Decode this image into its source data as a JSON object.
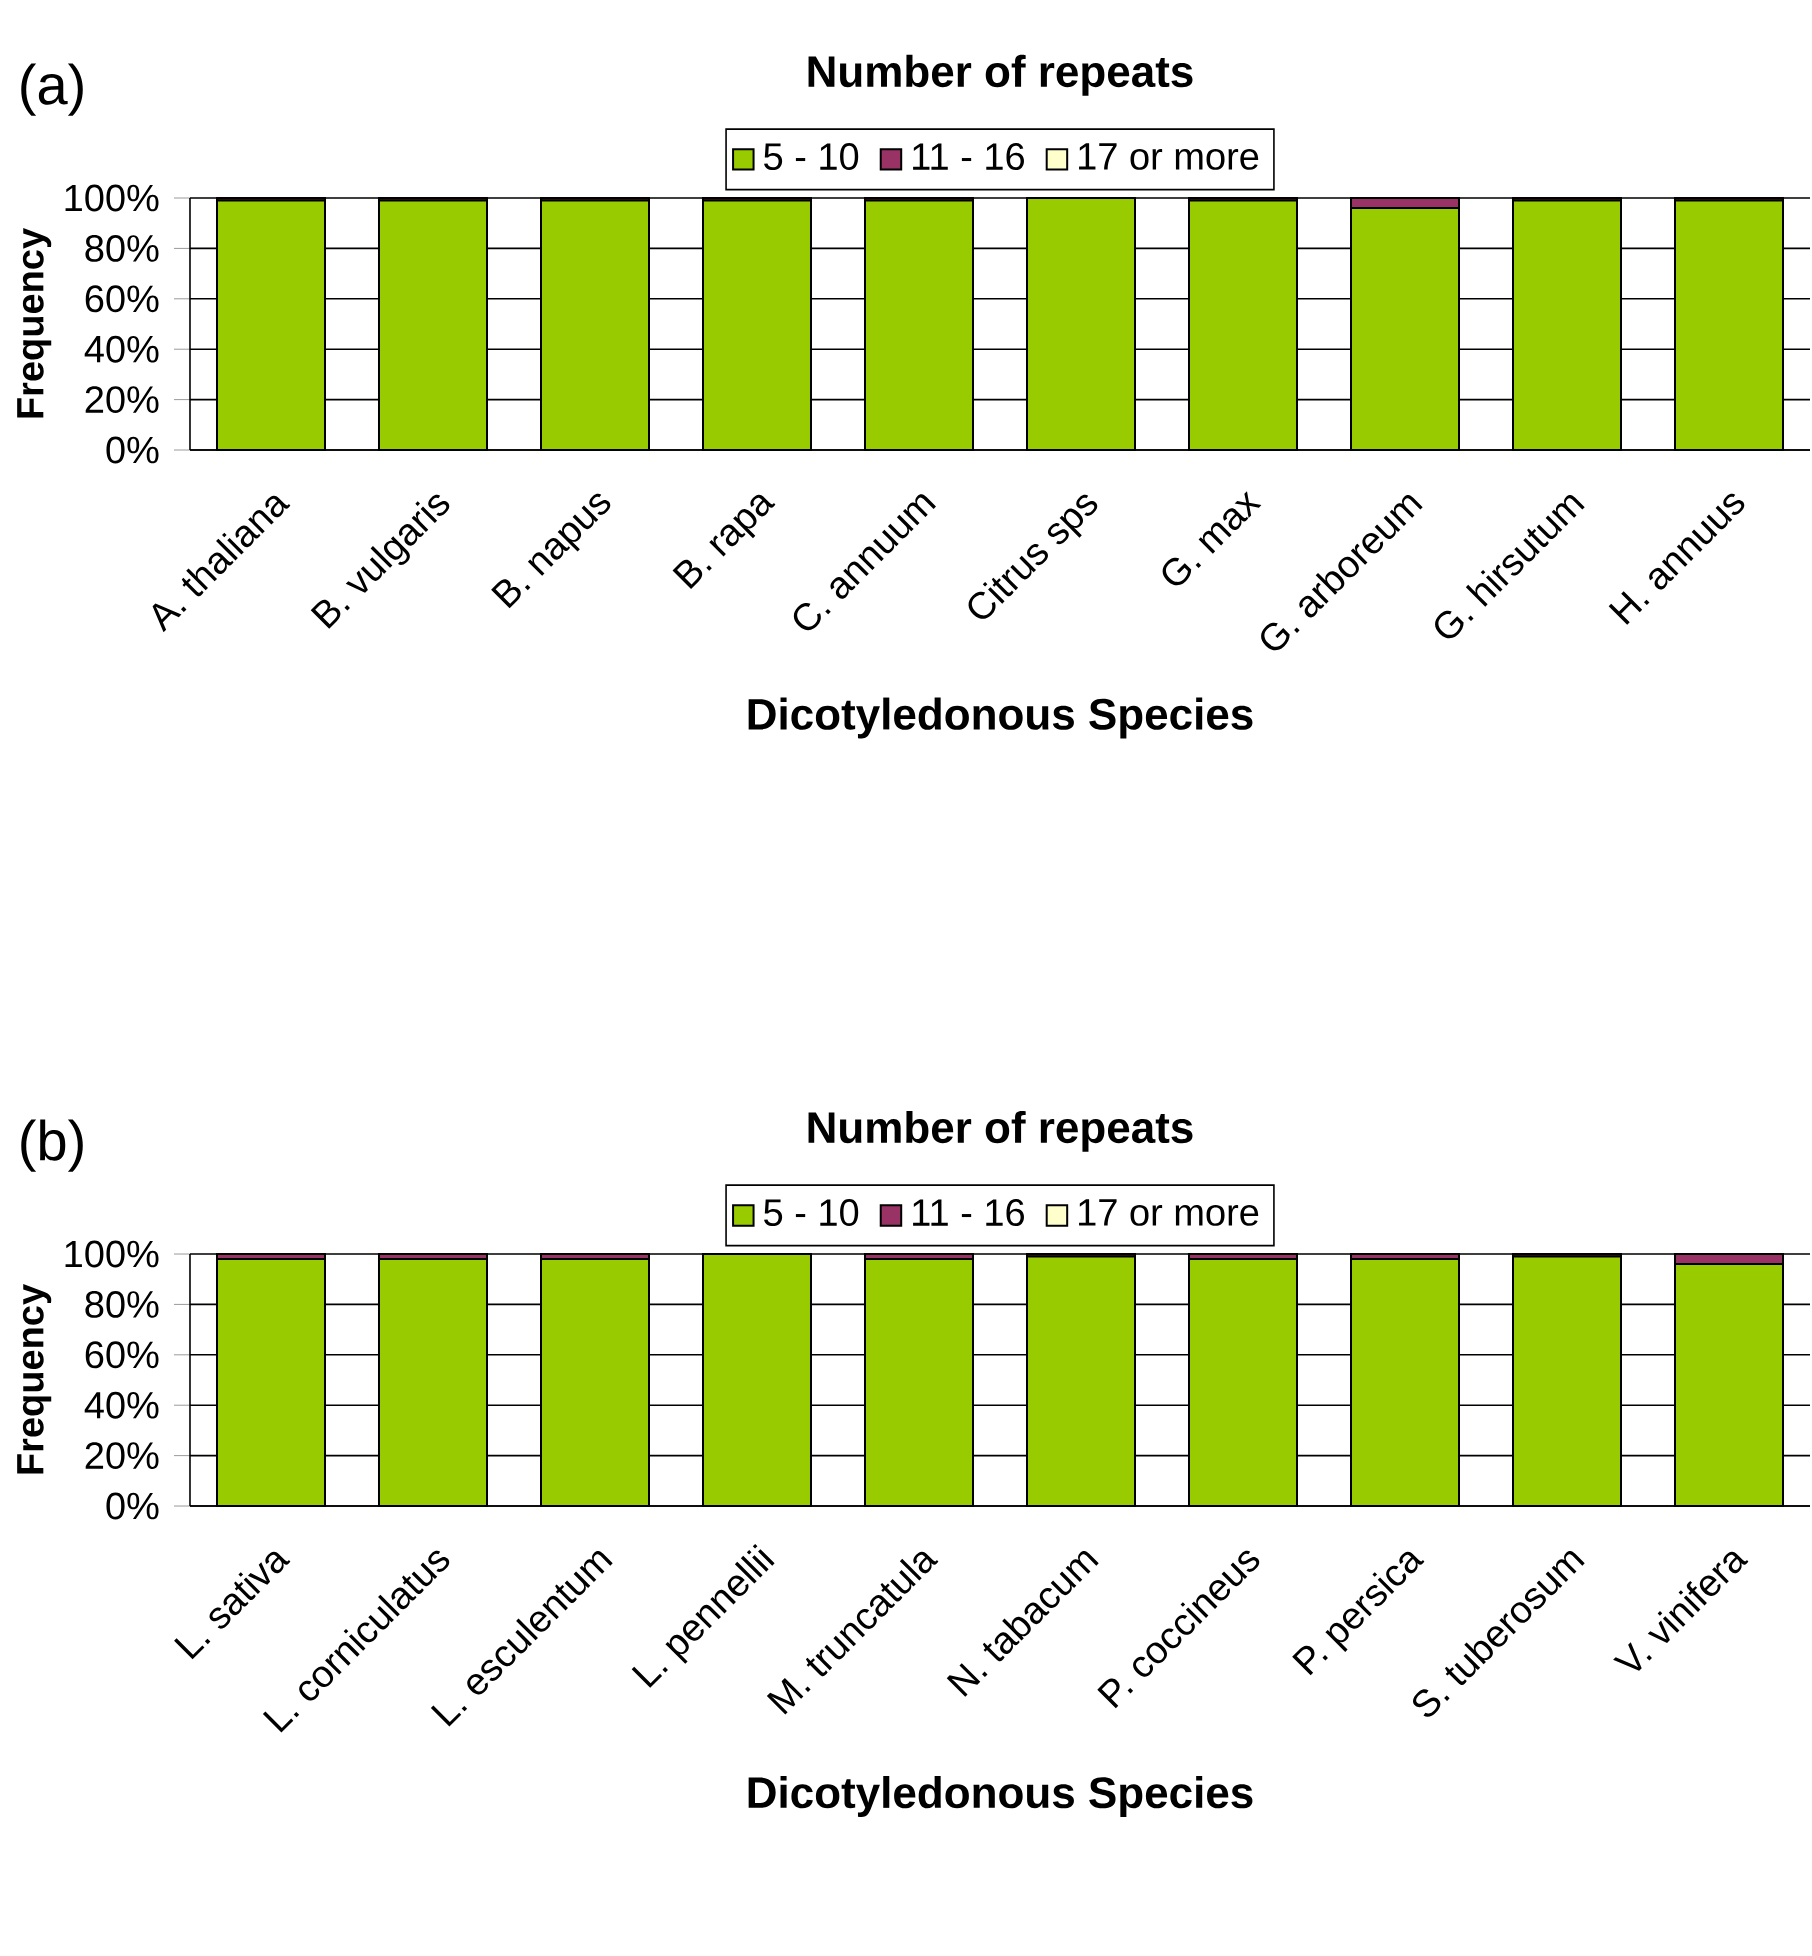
{
  "chart_data": [
    {
      "type": "bar",
      "stacked": true,
      "title": "Number of repeats",
      "xlabel": "Dicotyledonous Species",
      "ylabel": "Frequency",
      "annotations": [
        "(a)"
      ],
      "categories": [
        "A. thaliana",
        "B. vulgaris",
        "B. napus",
        "B. rapa",
        "C. annuum",
        "Citrus sps",
        "G. max",
        "G. arboreum",
        "G. hirsutum",
        "H. annuus"
      ],
      "series": [
        {
          "name": "5 - 10",
          "color": "#99cc00",
          "values": [
            99,
            99,
            99,
            99,
            99,
            100,
            99,
            96,
            99,
            99
          ]
        },
        {
          "name": "11 - 16",
          "color": "#993366",
          "values": [
            1,
            1,
            1,
            1,
            1,
            0,
            1,
            4,
            1,
            1
          ]
        },
        {
          "name": "17 or more",
          "color": "#ffffcc",
          "values": [
            0,
            0,
            0,
            0,
            0,
            0,
            0,
            0,
            0,
            0
          ]
        }
      ],
      "ylim": [
        0,
        100
      ],
      "yticks": [
        {
          "value": 0,
          "label": "0%"
        },
        {
          "value": 20,
          "label": "20%"
        },
        {
          "value": 40,
          "label": "40%"
        },
        {
          "value": 60,
          "label": "60%"
        },
        {
          "value": 80,
          "label": "80%"
        },
        {
          "value": 100,
          "label": "100%"
        }
      ],
      "grid": "y",
      "legend": "top"
    },
    {
      "type": "bar",
      "stacked": true,
      "title": "Number of repeats",
      "xlabel": "Dicotyledonous Species",
      "ylabel": "Frequency",
      "annotations": [
        "(b)"
      ],
      "categories": [
        "L. sativa",
        "L. corniculatus",
        "L. esculentum",
        "L. pennellii",
        "M. truncatula",
        "N. tabacum",
        "P. coccineus",
        "P. persica",
        "S. tuberosum",
        "V. vinifera"
      ],
      "series": [
        {
          "name": "5 - 10",
          "color": "#99cc00",
          "values": [
            98,
            98,
            98,
            100,
            98,
            99,
            98,
            98,
            99,
            96
          ]
        },
        {
          "name": "11 - 16",
          "color": "#993366",
          "values": [
            2,
            2,
            2,
            0,
            2,
            1,
            2,
            2,
            1,
            4
          ]
        },
        {
          "name": "17 or more",
          "color": "#ffffcc",
          "values": [
            0,
            0,
            0,
            0,
            0,
            0,
            0,
            0,
            0,
            0
          ]
        }
      ],
      "ylim": [
        0,
        100
      ],
      "yticks": [
        {
          "value": 0,
          "label": "0%"
        },
        {
          "value": 20,
          "label": "20%"
        },
        {
          "value": 40,
          "label": "40%"
        },
        {
          "value": 60,
          "label": "60%"
        },
        {
          "value": 80,
          "label": "80%"
        },
        {
          "value": 100,
          "label": "100%"
        }
      ],
      "grid": "y",
      "legend": "top"
    }
  ]
}
